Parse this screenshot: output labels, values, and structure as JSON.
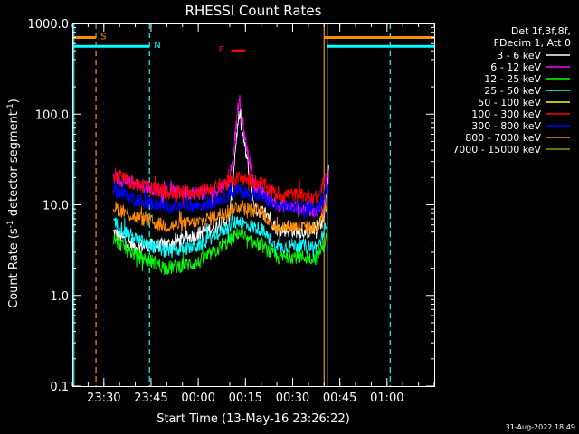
{
  "chart_data": {
    "type": "line",
    "title": "RHESSI Count Rates",
    "xlabel": "Start Time (13-May-16 23:26:22)",
    "ylabel_main": "Count Rate (s",
    "ylabel_sup1": "-1",
    "ylabel_mid": " detector segment",
    "ylabel_sup2": "-1",
    "ylabel_end": ")",
    "y_scale": "log",
    "ylim": [
      0.1,
      1000.0
    ],
    "y_ticks": [
      {
        "value": 0.1,
        "label": "0.1"
      },
      {
        "value": 1,
        "label": "1.0"
      },
      {
        "value": 10,
        "label": "10.0"
      },
      {
        "value": 100,
        "label": "100.0"
      },
      {
        "value": 1000,
        "label": "1000.0"
      }
    ],
    "xlim_minutes": [
      -40,
      75
    ],
    "x_ticks": [
      {
        "value": -30,
        "label": "23:30"
      },
      {
        "value": -15,
        "label": "23:45"
      },
      {
        "value": 0,
        "label": "00:00"
      },
      {
        "value": 15,
        "label": "00:15"
      },
      {
        "value": 30,
        "label": "00:30"
      },
      {
        "value": 45,
        "label": "00:45"
      },
      {
        "value": 60,
        "label": "01:00"
      }
    ],
    "legend_header": [
      "Det 1f,3f,8f,",
      "FDecim 1, Att 0"
    ],
    "legend_position": "right",
    "series": [
      {
        "name": "3 - 6 keV",
        "color": "#ffffff",
        "x": [
          -27,
          -20,
          -10,
          0,
          5,
          10,
          12,
          13,
          15,
          18,
          22,
          25,
          30,
          35,
          38,
          40,
          41.5
        ],
        "y": [
          5,
          3.5,
          3.6,
          4.8,
          5.6,
          7,
          50,
          100,
          40,
          9,
          8,
          5.4,
          5.2,
          5,
          5.8,
          7,
          25
        ]
      },
      {
        "name": "6 - 12 keV",
        "color": "#ff00ff",
        "x": [
          -27,
          -20,
          -10,
          0,
          5,
          10,
          12,
          13,
          15,
          18,
          22,
          25,
          30,
          35,
          38,
          40,
          41.5
        ],
        "y": [
          20,
          17,
          14,
          13.5,
          14,
          18,
          70,
          150,
          50,
          16,
          12,
          10,
          9.5,
          9,
          8.5,
          9,
          22
        ]
      },
      {
        "name": "12 - 25 keV",
        "color": "#00ff00",
        "x": [
          -27,
          -20,
          -10,
          0,
          5,
          10,
          13,
          15,
          20,
          25,
          30,
          35,
          38,
          41
        ],
        "y": [
          4.2,
          2.8,
          2.0,
          2.3,
          3.0,
          4.0,
          5.0,
          4.0,
          3.6,
          2.6,
          2.7,
          2.6,
          2.6,
          4.5
        ]
      },
      {
        "name": "25 - 50 keV",
        "color": "#00ffff",
        "x": [
          -27,
          -20,
          -10,
          0,
          5,
          10,
          13,
          15,
          20,
          25,
          30,
          35,
          38,
          41
        ],
        "y": [
          6.5,
          4.2,
          3.0,
          3.5,
          4.6,
          5.8,
          6.8,
          6.0,
          5.4,
          3.3,
          3.6,
          3.5,
          3.4,
          6.0
        ]
      },
      {
        "name": "50 - 100 keV",
        "color": "#ffff00",
        "x": [],
        "y": []
      },
      {
        "name": "100 - 300 keV",
        "color": "#ff0000",
        "x": [
          -27,
          -20,
          -10,
          0,
          5,
          10,
          13,
          15,
          20,
          25,
          30,
          35,
          38,
          41
        ],
        "y": [
          22,
          17,
          13.5,
          14,
          15.5,
          18,
          20,
          19,
          17.5,
          13,
          13,
          12.5,
          12,
          22
        ]
      },
      {
        "name": "300 - 800 keV",
        "color": "#0000ff",
        "x": [
          -27,
          -20,
          -10,
          0,
          5,
          10,
          13,
          15,
          20,
          25,
          30,
          35,
          38,
          41
        ],
        "y": [
          15,
          11.5,
          9.5,
          9.8,
          11,
          13,
          14.5,
          13.5,
          12.5,
          9.5,
          9.5,
          9.2,
          9,
          16
        ]
      },
      {
        "name": "800 - 7000 keV",
        "color": "#ff8c00",
        "x": [
          -27,
          -20,
          -10,
          0,
          5,
          10,
          13,
          15,
          20,
          25,
          30,
          35,
          38,
          41
        ],
        "y": [
          9.5,
          7.3,
          5.8,
          6.4,
          7.4,
          8.8,
          9.8,
          9.0,
          8.3,
          5.6,
          5.8,
          5.6,
          5.5,
          10
        ]
      },
      {
        "name": "7000 - 15000 keV",
        "color": "#999900",
        "x": [],
        "y": []
      }
    ],
    "annotations": [
      {
        "label": "S",
        "color": "#ff8c00",
        "y": 700,
        "x_from": -40,
        "x_to": -32.5
      },
      {
        "label": "N",
        "color": "#00ffff",
        "y": 560,
        "x_from": -40,
        "x_to": -15.5
      },
      {
        "label": "F",
        "color": "#ff0000",
        "y": 500,
        "x_from": 10.5,
        "x_to": 15
      },
      {
        "label": "",
        "color": "#ff8c00",
        "y": 700,
        "x_from": 40,
        "x_to": 75
      },
      {
        "label": "",
        "color": "#00ffff",
        "y": 560,
        "x_from": 41,
        "x_to": 75
      }
    ],
    "vertical_lines": [
      {
        "x": -39.5,
        "color": "#00ffff",
        "dashed": false
      },
      {
        "x": -32.5,
        "color": "#ff8c00",
        "dashed": true
      },
      {
        "x": -15.5,
        "color": "#00ffff",
        "dashed": true
      },
      {
        "x": 40,
        "color": "#ff8c00",
        "dashed": false
      },
      {
        "x": 41,
        "color": "#00ffff",
        "dashed": false
      },
      {
        "x": 61,
        "color": "#00ffff",
        "dashed": true
      }
    ],
    "footer_date": "31-Aug-2022 18:49"
  }
}
